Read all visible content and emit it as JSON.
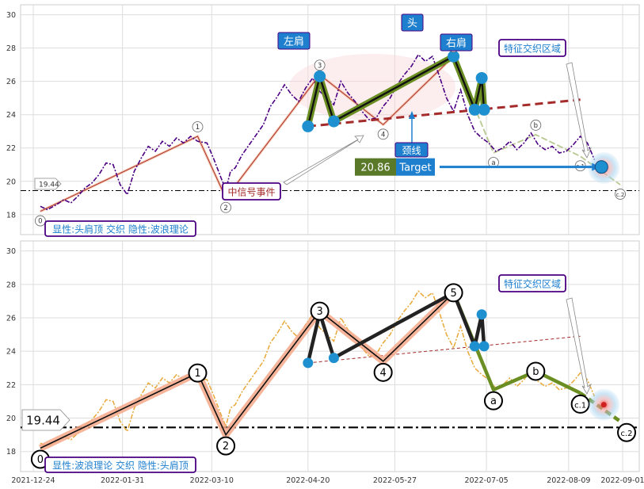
{
  "chart_data": {
    "type": "line",
    "x_ticks": [
      "2021-12-24",
      "2022-01-31",
      "2022-03-10",
      "2022-04-20",
      "2022-05-27",
      "2022-07-05",
      "2022-08-09",
      "2022-09-01"
    ],
    "y_ticks": [
      18,
      20,
      22,
      24,
      26,
      28,
      30
    ],
    "ylim": [
      16.8,
      30.6
    ],
    "grid": true,
    "hline": {
      "value": 19.44,
      "label": "19.44"
    },
    "price_series": {
      "name": "",
      "x": [
        "2021-12-27",
        "2021-12-30",
        "2022-01-03",
        "2022-01-06",
        "2022-01-09",
        "2022-01-12",
        "2022-01-15",
        "2022-01-18",
        "2022-01-21",
        "2022-01-24",
        "2022-01-27",
        "2022-01-30",
        "2022-02-02",
        "2022-02-05",
        "2022-02-08",
        "2022-02-11",
        "2022-02-14",
        "2022-02-17",
        "2022-02-20",
        "2022-02-23",
        "2022-02-26",
        "2022-03-01",
        "2022-03-04",
        "2022-03-08",
        "2022-03-11",
        "2022-03-14",
        "2022-03-16",
        "2022-03-18",
        "2022-03-20",
        "2022-03-23",
        "2022-03-26",
        "2022-03-29",
        "2022-04-01",
        "2022-04-04",
        "2022-04-07",
        "2022-04-10",
        "2022-04-13",
        "2022-04-16",
        "2022-04-19",
        "2022-04-22",
        "2022-04-25",
        "2022-04-28",
        "2022-05-01",
        "2022-05-04",
        "2022-05-07",
        "2022-05-10",
        "2022-05-13",
        "2022-05-16",
        "2022-05-19",
        "2022-05-22",
        "2022-05-25",
        "2022-05-28",
        "2022-05-31",
        "2022-06-03",
        "2022-06-06",
        "2022-06-09",
        "2022-06-12",
        "2022-06-15",
        "2022-06-18",
        "2022-06-21",
        "2022-06-24",
        "2022-06-27",
        "2022-06-30",
        "2022-07-03",
        "2022-07-06",
        "2022-07-09",
        "2022-07-12",
        "2022-07-15",
        "2022-07-18",
        "2022-07-21",
        "2022-07-24",
        "2022-07-27",
        "2022-07-30",
        "2022-08-02",
        "2022-08-05",
        "2022-08-08",
        "2022-08-11",
        "2022-08-14",
        "2022-08-17",
        "2022-08-20"
      ],
      "y": [
        18.5,
        18.3,
        18.6,
        18.9,
        18.7,
        19.1,
        19.6,
        19.9,
        20.4,
        21.1,
        21.0,
        19.8,
        19.2,
        20.6,
        21.4,
        22.1,
        21.8,
        22.4,
        22.1,
        22.6,
        22.3,
        22.7,
        22.4,
        22.3,
        21.3,
        20.2,
        19.5,
        20.6,
        20.8,
        21.6,
        22.2,
        22.8,
        23.4,
        24.5,
        25.1,
        25.8,
        25.2,
        24.8,
        25.6,
        26.2,
        25.4,
        25.0,
        24.6,
        26.0,
        25.3,
        24.8,
        24.2,
        23.7,
        23.8,
        24.5,
        25.0,
        25.8,
        26.4,
        26.9,
        27.6,
        27.2,
        27.5,
        26.3,
        25.0,
        24.2,
        25.5,
        24.0,
        23.0,
        22.6,
        22.3,
        21.8,
        22.0,
        22.4,
        21.9,
        22.3,
        22.9,
        22.2,
        21.9,
        22.1,
        21.7,
        21.8,
        22.2,
        22.7,
        22.3,
        21.3
      ]
    },
    "waves": [
      {
        "label": "0",
        "x": "2021-12-27",
        "y": 18.2
      },
      {
        "label": "1",
        "x": "2022-03-04",
        "y": 22.7
      },
      {
        "label": "2",
        "x": "2022-03-16",
        "y": 19.0
      },
      {
        "label": "3",
        "x": "2022-04-25",
        "y": 26.4
      },
      {
        "label": "4",
        "x": "2022-05-22",
        "y": 23.4
      },
      {
        "label": "5",
        "x": "2022-06-21",
        "y": 27.5
      },
      {
        "label": "a",
        "x": "2022-07-08",
        "y": 21.7
      },
      {
        "label": "b",
        "x": "2022-07-26",
        "y": 22.8
      },
      {
        "label": "c.1",
        "x": "2022-08-14",
        "y": 21.5
      },
      {
        "label": "c.2",
        "x": "2022-08-31",
        "y": 19.8
      }
    ],
    "hs_points": [
      {
        "x": "2022-04-20",
        "y": 23.3
      },
      {
        "x": "2022-04-25",
        "y": 26.3
      },
      {
        "x": "2022-05-01",
        "y": 23.6
      },
      {
        "x": "2022-06-21",
        "y": 27.5
      },
      {
        "x": "2022-06-30",
        "y": 24.3
      },
      {
        "x": "2022-07-03",
        "y": 26.2
      },
      {
        "x": "2022-07-04",
        "y": 24.3
      }
    ],
    "neckline": {
      "x1": "2022-04-20",
      "y1": 23.3,
      "x2": "2022-08-14",
      "y2": 24.9
    },
    "target": {
      "x": "2022-08-23",
      "y": 20.86,
      "label": "20.86",
      "text": "Target"
    },
    "zone": {
      "x": "2022-08-24",
      "y": 20.8
    }
  },
  "panel_top": {
    "labels": {
      "left_shoulder": "左肩",
      "head": "头",
      "right_shoulder": "右肩",
      "neckline": "颈线",
      "feature_zone": "特征交织区域",
      "mid_signal": "中信号事件",
      "summary": "显性:头肩顶 交织 隐性:波浪理论"
    }
  },
  "panel_bottom": {
    "labels": {
      "feature_zone": "特征交织区域",
      "summary": "显性:波浪理论 交织 隐性:头肩顶"
    }
  },
  "colors": {
    "price_top": "#4b0082",
    "price_bottom": "#e8a838",
    "hs_line": "#6b8e23",
    "neckline": "#a52a2a",
    "marker": "#1e90cf",
    "label_box": "#1e7fce",
    "annotation_border": "#4b0082"
  }
}
